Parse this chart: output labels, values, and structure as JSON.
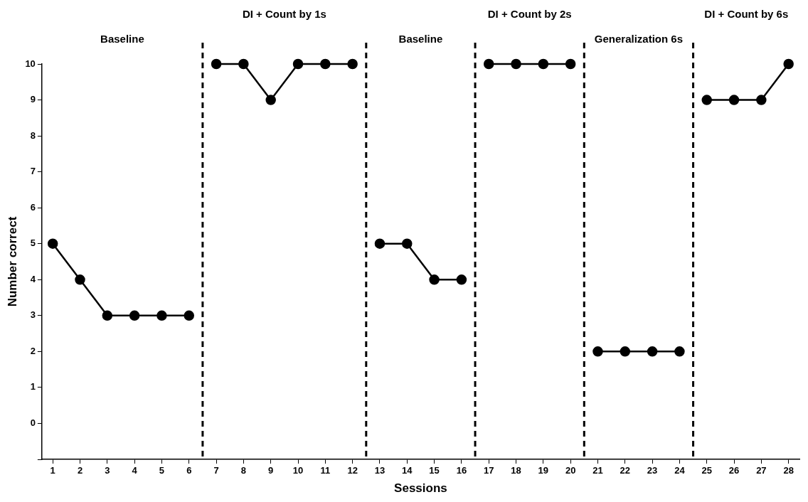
{
  "chart_data": {
    "type": "line",
    "xlabel": "Sessions",
    "ylabel": "Number correct",
    "xlim": [
      0.6,
      28.4
    ],
    "xticks": [
      1,
      2,
      3,
      4,
      5,
      6,
      7,
      8,
      9,
      10,
      11,
      12,
      13,
      14,
      15,
      16,
      17,
      18,
      19,
      20,
      21,
      22,
      23,
      24,
      25,
      26,
      27,
      28
    ],
    "ylim": [
      -1,
      10
    ],
    "yticks": [
      {
        "value": -1,
        "label": null
      },
      0,
      1,
      2,
      3,
      4,
      5,
      6,
      7,
      8,
      9,
      10
    ],
    "grid": false,
    "legend": false,
    "marker": "circle",
    "line_style": "solid",
    "series": [
      {
        "color": "#000000",
        "x": [
          1,
          2,
          3,
          4,
          5,
          6
        ],
        "values": [
          5,
          4,
          3,
          3,
          3,
          3
        ]
      },
      {
        "color": "#000000",
        "x": [
          7,
          8,
          9,
          10,
          11,
          12
        ],
        "values": [
          10,
          10,
          9,
          10,
          10,
          10
        ]
      },
      {
        "color": "#000000",
        "x": [
          13,
          14,
          15,
          16
        ],
        "values": [
          5,
          5,
          4,
          4
        ]
      },
      {
        "color": "#000000",
        "x": [
          17,
          18,
          19,
          20
        ],
        "values": [
          10,
          10,
          10,
          10
        ]
      },
      {
        "color": "#000000",
        "x": [
          21,
          22,
          23,
          24
        ],
        "values": [
          2,
          2,
          2,
          2
        ]
      },
      {
        "color": "#000000",
        "x": [
          25,
          26,
          27,
          28
        ],
        "values": [
          9,
          9,
          9,
          10
        ]
      }
    ],
    "ref_lines": [
      {
        "axis": "x",
        "value": 6.5,
        "color": "#000000",
        "line_style": "dashed"
      },
      {
        "axis": "x",
        "value": 12.5,
        "color": "#000000",
        "line_style": "dashed"
      },
      {
        "axis": "x",
        "value": 16.5,
        "color": "#000000",
        "line_style": "dashed"
      },
      {
        "axis": "x",
        "value": 20.5,
        "color": "#000000",
        "line_style": "dashed"
      },
      {
        "axis": "x",
        "value": 24.5,
        "color": "#000000",
        "line_style": "dashed"
      }
    ],
    "annotations": [
      "Baseline",
      "DI + Count by 1s",
      "Baseline",
      "DI + Count by 2s",
      "Generalization 6s",
      "DI + Count by 6s"
    ]
  }
}
